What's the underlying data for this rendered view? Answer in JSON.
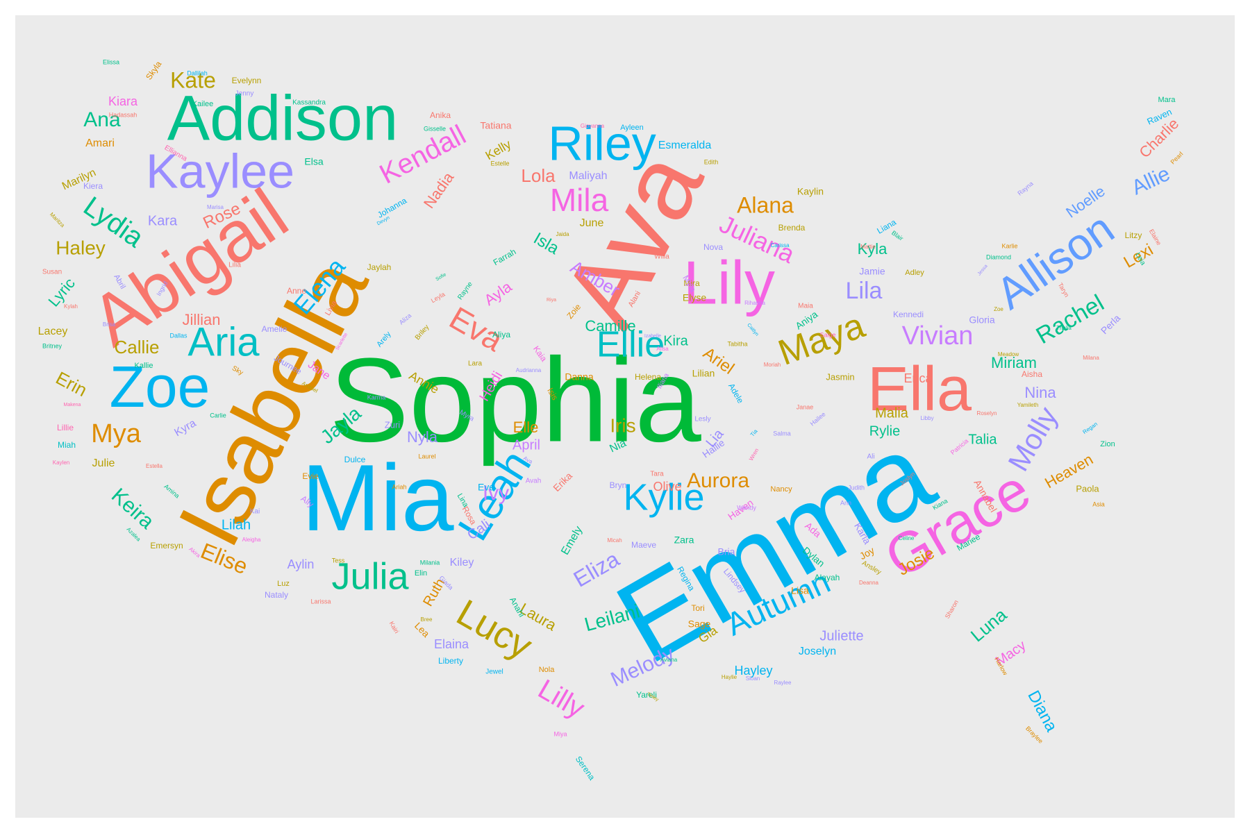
{
  "palette": {
    "salmon": "#f8766d",
    "orange": "#de8c00",
    "olive": "#b79f00",
    "yellowgreen": "#7cae00",
    "green": "#00ba38",
    "teal": "#00c08b",
    "cyan": "#00bfc4",
    "sky": "#00b4f0",
    "blue": "#619cff",
    "violet": "#9a8dff",
    "purple": "#c77cff",
    "magenta": "#f564e3",
    "pink": "#ff64b0"
  },
  "words": {
    "w000": "Sophia",
    "w001": "Emma",
    "w002": "Isabella",
    "w003": "Ava",
    "w004": "Mia",
    "w005": "Abigail",
    "w006": "Addison",
    "w007": "Lily",
    "w008": "Ella",
    "w009": "Grace",
    "w010": "Zoe",
    "w011": "Kaylee",
    "w012": "Riley",
    "w013": "Allison",
    "w014": "Leah",
    "w015": "Aria",
    "w016": "Julia",
    "w017": "Lucy",
    "w018": "Kylie",
    "w019": "Autumn",
    "w020": "Maya",
    "w021": "Ellie",
    "w022": "Molly",
    "w023": "Eva",
    "w024": "Mila",
    "w025": "Kendall",
    "w026": "Lydia",
    "w027": "Elena",
    "w028": "Vivian",
    "w029": "Lilly",
    "w030": "Juliana",
    "w031": "Rachel",
    "w032": "Mya",
    "w033": "Elise",
    "w034": "Keira",
    "w035": "Kate",
    "w036": "Ana",
    "w037": "Haley",
    "w038": "Eliza",
    "w039": "Melody",
    "w040": "Leilani",
    "w041": "Aurora",
    "w042": "Iris",
    "w043": "Lila",
    "w044": "Jayla",
    "w045": "Alana",
    "w046": "Nadia",
    "w047": "Amber",
    "w048": "Ivy",
    "w049": "Rose",
    "w050": "Allie",
    "w051": "Lola",
    "w052": "Isla",
    "w053": "Kyla",
    "w054": "Heaven",
    "w055": "Lexi",
    "w056": "Noelle",
    "w057": "Charlie",
    "w058": "Camille",
    "w059": "Ariel",
    "w060": "Jillian",
    "w061": "Callie",
    "w062": "Erin",
    "w063": "Kara",
    "w064": "Nyla",
    "w065": "Ayla",
    "w066": "Miriam",
    "w067": "Nina",
    "w068": "Rylie",
    "w069": "Talia",
    "w070": "Malia",
    "w071": "Erica",
    "w072": "Josie",
    "w073": "Luna",
    "w074": "Macy",
    "w075": "Diana",
    "w076": "Hayley",
    "w077": "Juliette",
    "w078": "Joselyn",
    "w079": "Laura",
    "w080": "Elaina",
    "w081": "Ruth",
    "w082": "Lilah",
    "w083": "Aylin",
    "w084": "Kira",
    "w085": "Lia",
    "w086": "Elle",
    "w087": "April",
    "w088": "Annie",
    "w089": "Heidi",
    "w090": "Cali",
    "w091": "Kiley",
    "w092": "Olive",
    "w093": "Zara",
    "w094": "Emely",
    "w095": "Lyric",
    "w096": "Lacey",
    "w097": "Julie",
    "w098": "Kyra",
    "w099": "Kiara",
    "w100": "Amari",
    "w101": "Marilyn",
    "w102": "Evelynn",
    "w103": "Kelly",
    "w104": "Tatiana",
    "w105": "Esmeralda",
    "w106": "Maliyah",
    "w107": "June",
    "w108": "Johanna",
    "w109": "Jaylah",
    "w110": "Kaylin",
    "w111": "Brenda",
    "w112": "Elsa",
    "w113": "Skyla",
    "w114": "Lilian",
    "w115": "Danna",
    "w116": "Helena",
    "w117": "Jasmin",
    "w118": "Dulce",
    "w119": "Gloria",
    "w120": "Kennedi",
    "w121": "Aisha",
    "w122": "Paola",
    "w123": "Annabel",
    "w124": "Perla",
    "w125": "Litzy",
    "w126": "Raven",
    "w127": "Mara",
    "w128": "Zion",
    "w129": "Miah",
    "w130": "Lillie",
    "w131": "Emersyn",
    "w132": "Kallie",
    "w133": "Evie",
    "w134": "Eve",
    "w135": "Ally",
    "w136": "Jane",
    "w137": "Aniya",
    "w138": "Jamie",
    "w139": "Adley",
    "w140": "Liana",
    "w141": "Nova",
    "w142": "Elyse",
    "w143": "Mira",
    "w144": "Hallie",
    "w145": "Haven",
    "w146": "Nancy",
    "w147": "Wendy",
    "w148": "Bria",
    "w149": "Gia",
    "w150": "Lindsey",
    "w151": "Regina",
    "w152": "Tori",
    "w153": "Sage",
    "w154": "Alayah",
    "w155": "Dylan",
    "w156": "Ada",
    "w157": "Karla",
    "w158": "Joy",
    "w159": "Lisa",
    "w160": "Mariee",
    "w161": "Lea",
    "w162": "Bryn",
    "w163": "Maeve",
    "w164": "Nia",
    "w165": "Erika",
    "w166": "Kaia",
    "w167": "Zoie",
    "w168": "Isis",
    "w169": "Aliya",
    "w170": "Amelie",
    "w171": "Anne",
    "w172": "Farrah",
    "w173": "Rosa",
    "w174": "Lina",
    "w175": "Anahi",
    "w176": "Yareli",
    "w177": "Jewel",
    "w178": "Liberty",
    "w179": "Nola",
    "w180": "Serena",
    "w181": "Elin",
    "w182": "Luz",
    "w183": "Nataly",
    "w184": "Larissa",
    "w185": "Alani",
    "w186": "Myla",
    "w187": "Willa",
    "w188": "Lesly",
    "w189": "Tara",
    "w190": "Kai",
    "w191": "Dallas",
    "w192": "Susan",
    "w193": "Lilia",
    "w194": "Maia",
    "w195": "Saige",
    "w196": "Tabitha",
    "w197": "Rihanna",
    "w198": "Carissa",
    "w199": "Mattie",
    "w200": "Blair",
    "w201": "Diamond",
    "w202": "Karlie",
    "w203": "Rayna",
    "w204": "Leia",
    "w205": "Elaine",
    "w206": "Taryn",
    "w207": "Pearl",
    "w208": "Thalia",
    "w209": "Meadow",
    "w210": "Milana",
    "w211": "Yamileth",
    "w212": "Regan",
    "w213": "Roselyn",
    "w214": "Libby",
    "w215": "Patricia",
    "w216": "Ali",
    "w217": "Judith",
    "w218": "Ann",
    "w219": "Celine",
    "w220": "Kiana",
    "w221": "Joslyn",
    "w222": "Ansley",
    "w223": "Deanna",
    "w224": "Sharon",
    "w225": "Harlow",
    "w226": "Braylee",
    "w227": "Asia",
    "w228": "Hailee",
    "w229": "Salma",
    "w230": "Janae",
    "w231": "Wren",
    "w232": "Tia",
    "w233": "Moriah",
    "w234": "Adele",
    "w235": "Iliana",
    "w236": "Izabelle",
    "w237": "Alisa",
    "w238": "Caitlyn",
    "w239": "Edith",
    "w240": "Ayleen",
    "w241": "Giovanna",
    "w242": "Riya",
    "w243": "Jaida",
    "w244": "Devyn",
    "w245": "Sofie",
    "w246": "Leyla",
    "w247": "Rayne",
    "w248": "Aliza",
    "w249": "Briley",
    "w250": "Lara",
    "w251": "Audrianna",
    "w252": "Arely",
    "w253": "Zuri",
    "w254": "Myra",
    "w255": "Ava",
    "w256": "Avah",
    "w257": "Laurel",
    "w258": "Ariah",
    "w259": "Karma",
    "w260": "Journee",
    "w261": "Anabel",
    "w262": "Scarlette",
    "w263": "Livia",
    "w264": "Estelle",
    "w265": "Gisselle",
    "w266": "Anika",
    "w267": "Ellianna",
    "w268": "Hadassah",
    "w269": "Kailee",
    "w270": "Jenny",
    "w271": "Kassandra",
    "w272": "Dallilah",
    "w273": "Elissa",
    "w274": "Kiera",
    "w275": "Marisa",
    "w276": "Maritza",
    "w277": "Abril",
    "w278": "Ingrid",
    "w279": "Kylah",
    "w280": "Brisa",
    "w281": "Britney",
    "w282": "Sky",
    "w283": "Carlie",
    "w284": "Makena",
    "w285": "Kaylen",
    "w286": "Estella",
    "w287": "Amina",
    "w288": "Azalea",
    "w289": "Akira",
    "w290": "Aleigha",
    "w291": "Tess",
    "w292": "Milania",
    "w293": "Giada",
    "w294": "Micah",
    "w295": "Aviana",
    "w296": "Haylie",
    "w297": "Sloan",
    "w298": "Raylee",
    "w299": "Tinley",
    "w300": "Kairi",
    "w301": "Bree",
    "w302": "Miya",
    "w303": "Jessa",
    "w304": "Zoe"
  }
}
